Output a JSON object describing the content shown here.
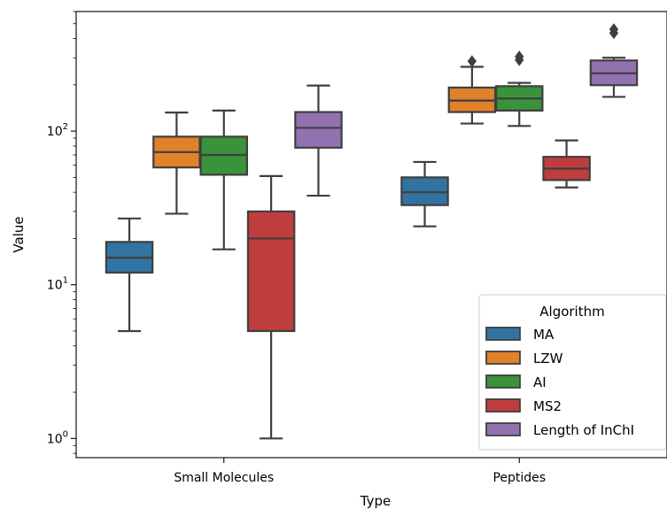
{
  "chart_data": {
    "type": "box",
    "xlabel": "Type",
    "ylabel": "Value",
    "yscale": "log",
    "ylim": [
      0.75,
      600
    ],
    "y_ticks": [
      {
        "value": 1,
        "base": "10",
        "exp": "0"
      },
      {
        "value": 10,
        "base": "10",
        "exp": "1"
      },
      {
        "value": 100,
        "base": "10",
        "exp": "2"
      }
    ],
    "categories": [
      "Small Molecules",
      "Peptides"
    ],
    "legend": {
      "title": "Algorithm",
      "position": "lower-right"
    },
    "series": [
      {
        "name": "MA",
        "color": "#3274a1",
        "boxes": [
          {
            "whisker_low": 5,
            "q1": 12,
            "median": 15,
            "q3": 19,
            "whisker_high": 27,
            "outliers": []
          },
          {
            "whisker_low": 24,
            "q1": 33,
            "median": 40,
            "q3": 50,
            "whisker_high": 63,
            "outliers": []
          }
        ]
      },
      {
        "name": "LZW",
        "color": "#e1812c",
        "boxes": [
          {
            "whisker_low": 29,
            "q1": 58,
            "median": 73,
            "q3": 92,
            "whisker_high": 132,
            "outliers": []
          },
          {
            "whisker_low": 112,
            "q1": 133,
            "median": 158,
            "q3": 192,
            "whisker_high": 262,
            "outliers": [
              285
            ]
          }
        ]
      },
      {
        "name": "AI",
        "color": "#3a923a",
        "boxes": [
          {
            "whisker_low": 17,
            "q1": 52,
            "median": 70,
            "q3": 92,
            "whisker_high": 136,
            "outliers": []
          },
          {
            "whisker_low": 108,
            "q1": 136,
            "median": 163,
            "q3": 196,
            "whisker_high": 206,
            "outliers": [
              290,
              305
            ]
          }
        ]
      },
      {
        "name": "MS2",
        "color": "#c03d3e",
        "boxes": [
          {
            "whisker_low": 1,
            "q1": 5,
            "median": 20,
            "q3": 30,
            "whisker_high": 51,
            "outliers": []
          },
          {
            "whisker_low": 43,
            "q1": 48,
            "median": 57,
            "q3": 68,
            "whisker_high": 87,
            "outliers": []
          }
        ]
      },
      {
        "name": "Length of InChI",
        "color": "#9372b2",
        "boxes": [
          {
            "whisker_low": 38,
            "q1": 78,
            "median": 105,
            "q3": 133,
            "whisker_high": 198,
            "outliers": []
          },
          {
            "whisker_low": 167,
            "q1": 199,
            "median": 238,
            "q3": 288,
            "whisker_high": 300,
            "outliers": [
              435,
              460
            ]
          }
        ]
      }
    ]
  }
}
